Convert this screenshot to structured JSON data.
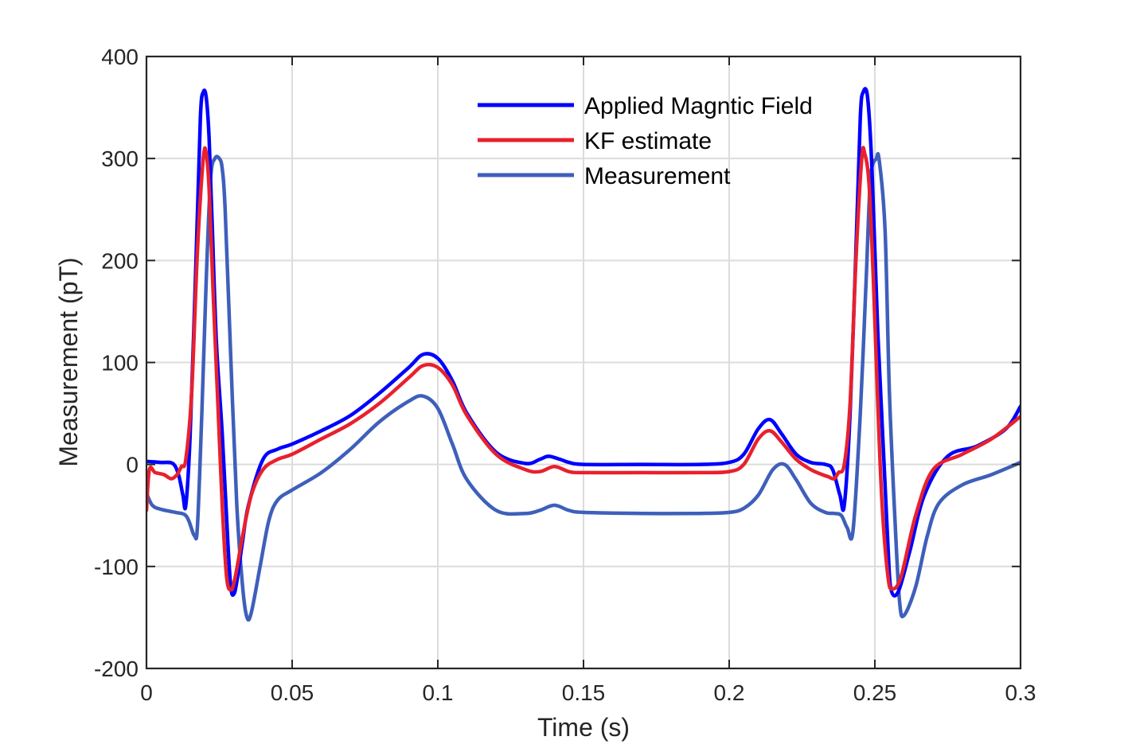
{
  "chart_data": {
    "type": "line",
    "title": "",
    "xlabel": "Time (s)",
    "ylabel": "Measurement (pT)",
    "xlim": [
      0,
      0.3
    ],
    "ylim": [
      -200,
      400
    ],
    "xticks": [
      0,
      0.05,
      0.1,
      0.15,
      0.2,
      0.25,
      0.3
    ],
    "xtick_labels": [
      "0",
      "0.05",
      "0.1",
      "0.15",
      "0.2",
      "0.25",
      "0.3"
    ],
    "yticks": [
      -200,
      -100,
      0,
      100,
      200,
      300,
      400
    ],
    "ytick_labels": [
      "-200",
      "-100",
      "0",
      "100",
      "200",
      "300",
      "400"
    ],
    "grid": true,
    "legend_position": "top-center",
    "series": [
      {
        "name": "Applied Magntic Field",
        "color": "#0000ff",
        "x": [
          0,
          0.005,
          0.009,
          0.011,
          0.0125,
          0.0135,
          0.015,
          0.017,
          0.0185,
          0.0195,
          0.0205,
          0.0215,
          0.0225,
          0.024,
          0.026,
          0.028,
          0.029,
          0.03,
          0.031,
          0.033,
          0.035,
          0.04,
          0.045,
          0.05,
          0.06,
          0.07,
          0.08,
          0.09,
          0.095,
          0.1,
          0.105,
          0.11,
          0.12,
          0.13,
          0.135,
          0.138,
          0.142,
          0.145,
          0.15,
          0.17,
          0.19,
          0.2,
          0.205,
          0.21,
          0.214,
          0.218,
          0.223,
          0.228,
          0.233,
          0.2355,
          0.238,
          0.2395,
          0.2415,
          0.2435,
          0.245,
          0.246,
          0.2475,
          0.249,
          0.251,
          0.253,
          0.2545,
          0.2555,
          0.258,
          0.262,
          0.267,
          0.275,
          0.285,
          0.295,
          0.3
        ],
        "y": [
          3,
          2,
          1,
          -10,
          -30,
          -40,
          30,
          200,
          340,
          365,
          360,
          320,
          240,
          120,
          30,
          -80,
          -122,
          -127,
          -115,
          -75,
          -40,
          5,
          15,
          20,
          33,
          48,
          70,
          95,
          108,
          104,
          82,
          50,
          12,
          1,
          5,
          8,
          5,
          2,
          0,
          0,
          0,
          2,
          10,
          35,
          44,
          30,
          10,
          2,
          0,
          -5,
          -30,
          -40,
          50,
          210,
          340,
          365,
          360,
          290,
          130,
          10,
          -80,
          -122,
          -125,
          -85,
          -30,
          8,
          18,
          35,
          57
        ]
      },
      {
        "name": "KF estimate",
        "color": "#e8212d",
        "x": [
          0,
          0.001,
          0.003,
          0.006,
          0.0085,
          0.0105,
          0.012,
          0.0135,
          0.0155,
          0.0175,
          0.0195,
          0.0205,
          0.0215,
          0.023,
          0.0245,
          0.026,
          0.0275,
          0.029,
          0.0305,
          0.033,
          0.036,
          0.04,
          0.045,
          0.05,
          0.06,
          0.07,
          0.08,
          0.09,
          0.095,
          0.1,
          0.105,
          0.11,
          0.12,
          0.13,
          0.135,
          0.14,
          0.145,
          0.15,
          0.17,
          0.19,
          0.2,
          0.205,
          0.21,
          0.214,
          0.218,
          0.223,
          0.228,
          0.232,
          0.234,
          0.236,
          0.2375,
          0.2395,
          0.2415,
          0.2435,
          0.2455,
          0.2465,
          0.248,
          0.2495,
          0.251,
          0.2525,
          0.2545,
          0.256,
          0.259,
          0.264,
          0.27,
          0.28,
          0.29,
          0.3
        ],
        "y": [
          -45,
          -5,
          -8,
          -10,
          -14,
          -10,
          -2,
          5,
          70,
          210,
          300,
          305,
          270,
          160,
          60,
          -40,
          -110,
          -123,
          -110,
          -70,
          -30,
          -5,
          5,
          10,
          25,
          40,
          60,
          85,
          97,
          95,
          78,
          48,
          10,
          -5,
          -7,
          -2,
          -7,
          -8,
          -8,
          -8,
          -7,
          0,
          25,
          33,
          22,
          5,
          -5,
          -10,
          -12,
          -14,
          -8,
          0,
          60,
          200,
          300,
          305,
          275,
          180,
          60,
          -40,
          -110,
          -122,
          -110,
          -50,
          -5,
          10,
          25,
          47
        ]
      },
      {
        "name": "Measurement",
        "color": "#3e5fbb",
        "x": [
          0,
          0.002,
          0.005,
          0.01,
          0.013,
          0.0145,
          0.0165,
          0.0175,
          0.019,
          0.0205,
          0.022,
          0.0235,
          0.025,
          0.026,
          0.027,
          0.029,
          0.031,
          0.033,
          0.0345,
          0.036,
          0.039,
          0.042,
          0.045,
          0.05,
          0.06,
          0.07,
          0.08,
          0.09,
          0.095,
          0.1,
          0.105,
          0.11,
          0.12,
          0.13,
          0.135,
          0.14,
          0.145,
          0.15,
          0.17,
          0.19,
          0.2,
          0.205,
          0.21,
          0.215,
          0.219,
          0.223,
          0.228,
          0.233,
          0.236,
          0.2385,
          0.2405,
          0.2425,
          0.245,
          0.247,
          0.2485,
          0.2505,
          0.2515,
          0.2535,
          0.255,
          0.257,
          0.2585,
          0.26,
          0.264,
          0.268,
          0.272,
          0.28,
          0.29,
          0.3
        ],
        "y": [
          -28,
          -40,
          -44,
          -47,
          -49,
          -55,
          -70,
          -60,
          50,
          180,
          280,
          300,
          300,
          290,
          250,
          100,
          -40,
          -120,
          -150,
          -145,
          -100,
          -55,
          -35,
          -25,
          -8,
          15,
          42,
          62,
          67,
          55,
          20,
          -15,
          -45,
          -48,
          -45,
          -40,
          -45,
          -47,
          -48,
          -48,
          -47,
          -43,
          -30,
          -5,
          0,
          -15,
          -38,
          -47,
          -48,
          -50,
          -62,
          -65,
          50,
          180,
          280,
          300,
          298,
          230,
          70,
          -60,
          -135,
          -148,
          -120,
          -70,
          -38,
          -20,
          -10,
          2
        ]
      }
    ]
  }
}
